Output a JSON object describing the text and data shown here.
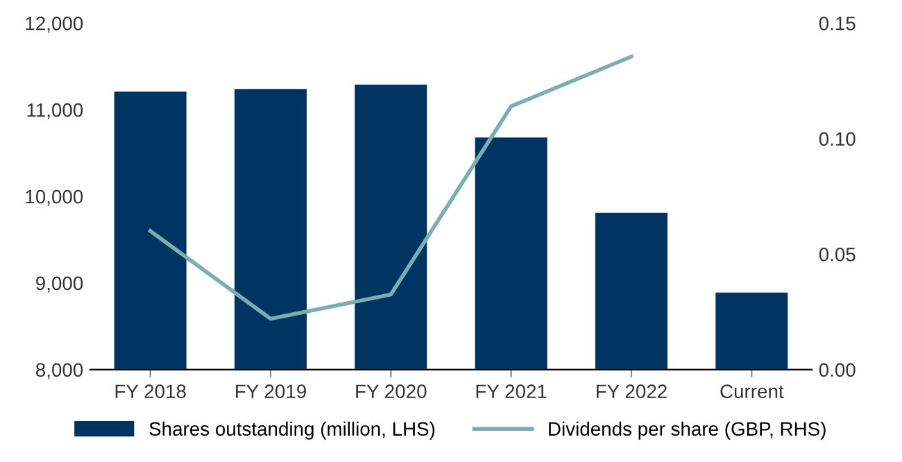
{
  "chart_data": {
    "type": "bar",
    "categories": [
      "FY 2018",
      "FY 2019",
      "FY 2020",
      "FY 2021",
      "FY 2022",
      "Current"
    ],
    "series": [
      {
        "name": "Shares outstanding (million, LHS)",
        "color": "#003462",
        "values": [
          11210,
          11240,
          11290,
          10680,
          9810,
          8890
        ]
      },
      {
        "name": "Dividends per share (GBP, RHS)",
        "type": "line",
        "axis": "y2",
        "color": "#7aaeb0",
        "values": [
          0.06,
          0.022,
          0.0325,
          0.114,
          0.1355,
          null
        ]
      }
    ],
    "ylim": [
      8000,
      12000
    ],
    "yticks": [
      {
        "value": 8000,
        "label": "8,000"
      },
      {
        "value": 9000,
        "label": "9,000"
      },
      {
        "value": 10000,
        "label": "10,000"
      },
      {
        "value": 11000,
        "label": "11,000"
      },
      {
        "value": 12000,
        "label": "12,000"
      }
    ],
    "y2lim": [
      0,
      0.15
    ],
    "y2ticks": [
      {
        "value": 0,
        "label": "0.00"
      },
      {
        "value": 0.05,
        "label": "0.05"
      },
      {
        "value": 0.1,
        "label": "0.10"
      },
      {
        "value": 0.15,
        "label": "0.15"
      }
    ],
    "legend": "bottom",
    "grid": false
  }
}
